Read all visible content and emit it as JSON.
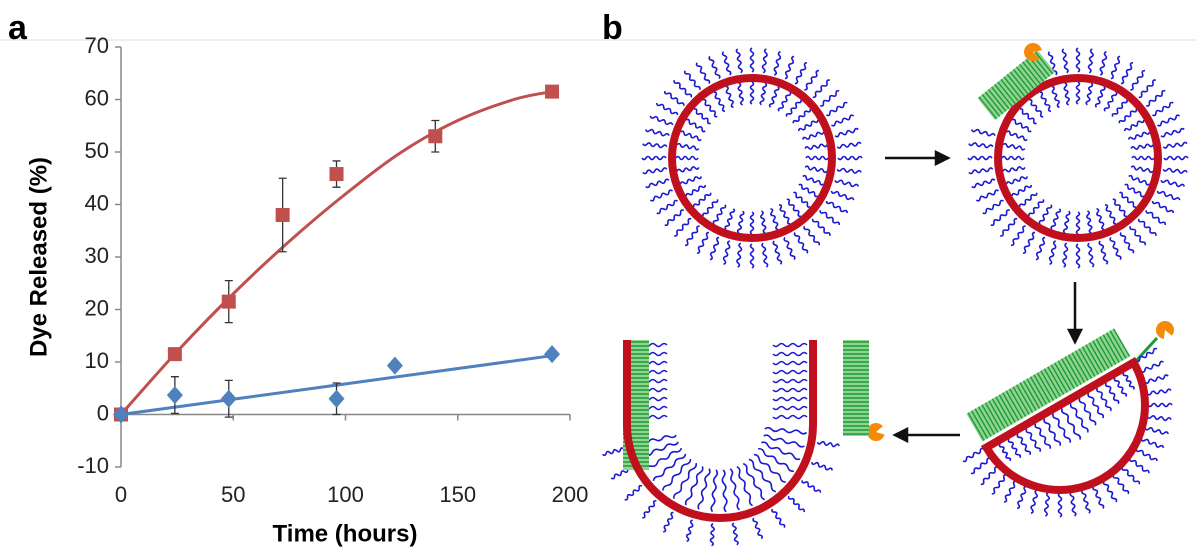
{
  "panel_labels": [
    "a",
    "b"
  ],
  "chart_data": {
    "type": "scatter",
    "xlabel": "Time (hours)",
    "ylabel": "Dye Released (%)",
    "xlim": [
      0,
      200
    ],
    "xticks": [
      0,
      50,
      100,
      150,
      200
    ],
    "ylim": [
      -10,
      70
    ],
    "yticks": [
      -10,
      0,
      10,
      20,
      30,
      40,
      50,
      60,
      70
    ],
    "series": [
      {
        "color": "#c0504d",
        "marker": "square",
        "x": [
          0,
          24,
          48,
          72,
          96,
          140,
          192
        ],
        "values": [
          0,
          11.5,
          21.5,
          38,
          45.8,
          53,
          61.5
        ],
        "errors": [
          0,
          1,
          4,
          7,
          2.5,
          3,
          0.5
        ]
      },
      {
        "color": "#4f81bd",
        "marker": "diamond",
        "x": [
          0,
          24,
          48,
          96,
          122,
          192
        ],
        "values": [
          0,
          3.7,
          3,
          3,
          9.3,
          11.5
        ],
        "errors": [
          0,
          3.5,
          3.5,
          3,
          0.5,
          0.5
        ]
      }
    ],
    "fits": [
      {
        "color": "#c0504d",
        "x": [
          0,
          25,
          50,
          75,
          100,
          125,
          150,
          175,
          192
        ],
        "values": [
          0,
          12,
          23,
          33,
          42,
          50,
          56,
          60,
          61.5
        ]
      },
      {
        "color": "#4f81bd",
        "x": [
          0,
          192
        ],
        "values": [
          0,
          11.2
        ]
      }
    ]
  }
}
